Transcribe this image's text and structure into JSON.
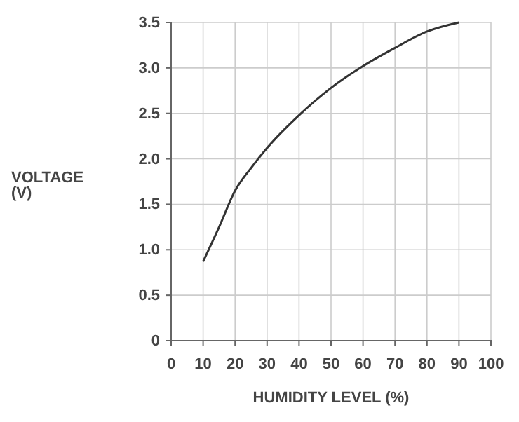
{
  "chart_data": {
    "type": "line",
    "xlabel": "HUMIDITY LEVEL (%)",
    "ylabel": "VOLTAGE\n(V)",
    "x": [
      10,
      15,
      20,
      25,
      30,
      40,
      50,
      60,
      70,
      80,
      90
    ],
    "series": [
      {
        "color": "#333333",
        "values": [
          0.87,
          1.25,
          1.65,
          1.9,
          2.12,
          2.48,
          2.78,
          3.02,
          3.22,
          3.4,
          3.5
        ]
      }
    ],
    "xlim": [
      0,
      100
    ],
    "xticks": [
      0,
      10,
      20,
      30,
      40,
      50,
      60,
      70,
      80,
      90,
      100
    ],
    "ylim": [
      0,
      3.5
    ],
    "yticks": [
      {
        "value": 0,
        "label": "0"
      },
      {
        "value": 0.5,
        "label": "0.5"
      },
      {
        "value": 1,
        "label": "1.0"
      },
      {
        "value": 1.5,
        "label": "1.5"
      },
      {
        "value": 2,
        "label": "2.0"
      },
      {
        "value": 2.5,
        "label": "2.5"
      },
      {
        "value": 3,
        "label": "3.0"
      },
      {
        "value": 3.5,
        "label": "3.5"
      }
    ],
    "grid": true,
    "marker": "none",
    "line_style": "solid"
  }
}
